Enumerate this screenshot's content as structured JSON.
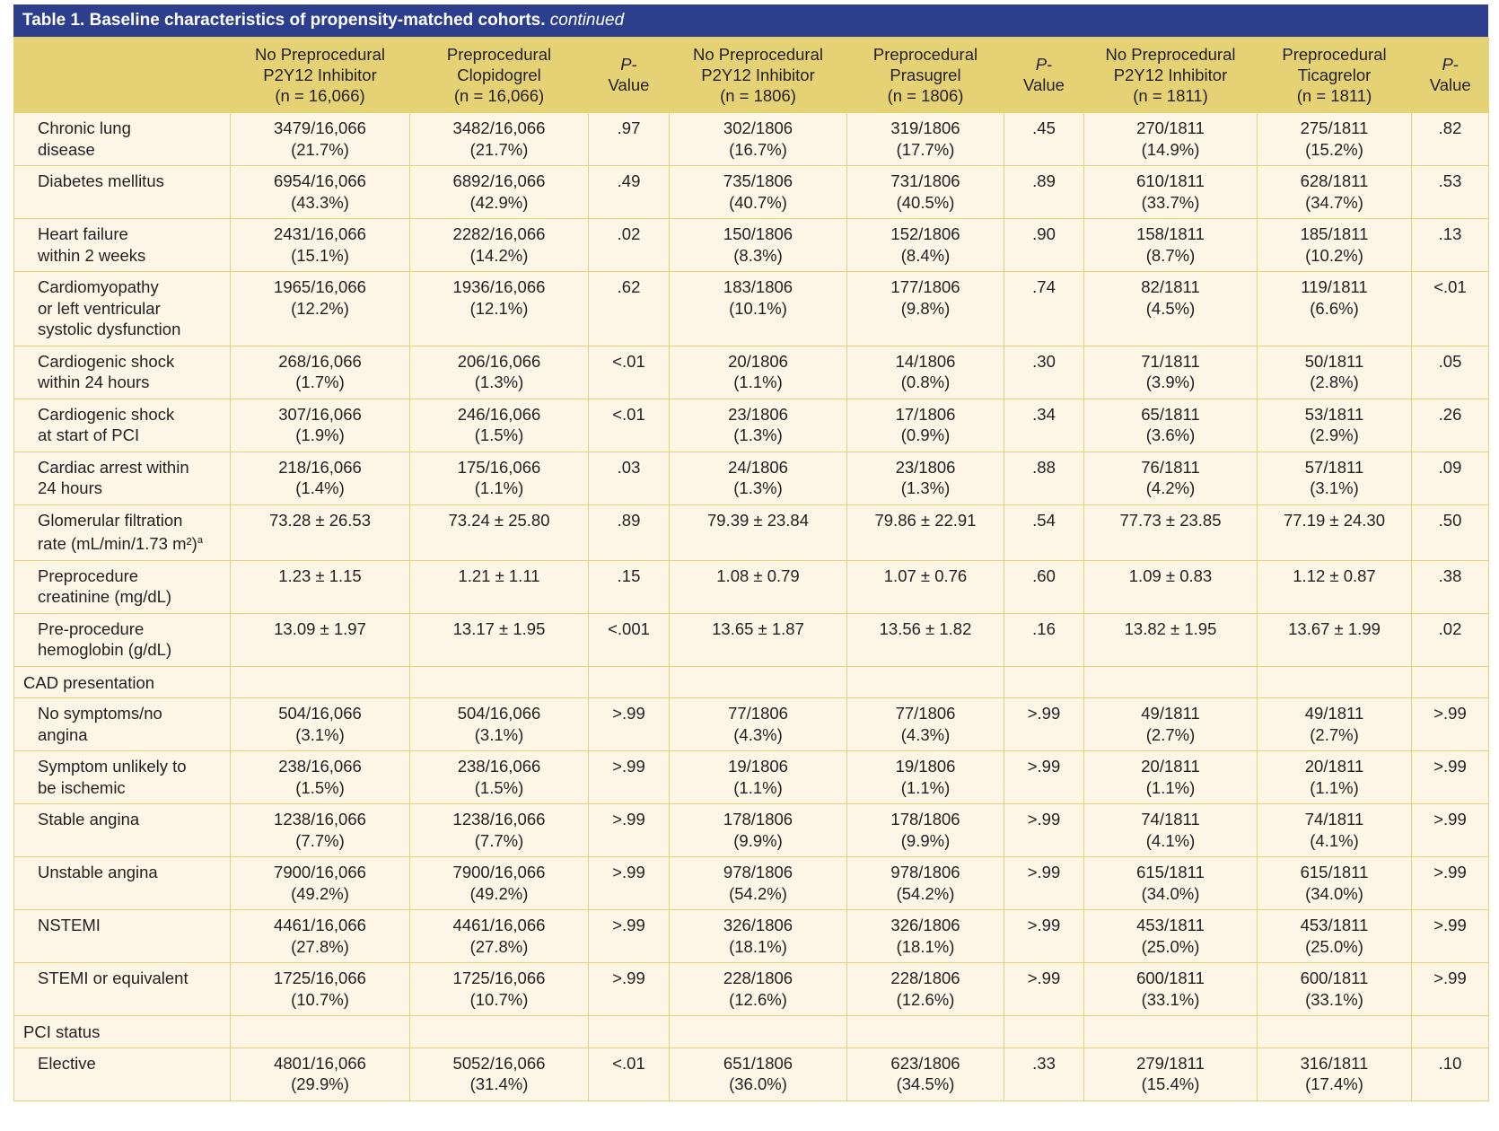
{
  "title": {
    "main": "Table 1. Baseline characteristics of propensity-matched cohorts.",
    "suffix": "continued"
  },
  "colors": {
    "title_bg": "#2c3e8c",
    "header_bg": "#e5d274",
    "body_bg": "#fdf6e6"
  },
  "columns": [
    "",
    "No Preprocedural\nP2Y12 Inhibitor\n(n = 16,066)",
    "Preprocedural\nClopidogrel\n(n = 16,066)",
    "P-\nValue",
    "No Preprocedural\nP2Y12 Inhibitor\n(n = 1806)",
    "Preprocedural\nPrasugrel\n(n = 1806)",
    "P-\nValue",
    "No Preprocedural\nP2Y12 Inhibitor\n(n = 1811)",
    "Preprocedural\nTicagrelor\n(n = 1811)",
    "P-\nValue"
  ],
  "rows": [
    {
      "label": "Chronic lung\ndisease",
      "cells": [
        "3479/16,066\n(21.7%)",
        "3482/16,066\n(21.7%)",
        ".97",
        "302/1806\n(16.7%)",
        "319/1806\n(17.7%)",
        ".45",
        "270/1811\n(14.9%)",
        "275/1811\n(15.2%)",
        ".82"
      ]
    },
    {
      "label": "Diabetes mellitus",
      "cells": [
        "6954/16,066\n(43.3%)",
        "6892/16,066\n(42.9%)",
        ".49",
        "735/1806\n(40.7%)",
        "731/1806\n(40.5%)",
        ".89",
        "610/1811\n(33.7%)",
        "628/1811\n(34.7%)",
        ".53"
      ]
    },
    {
      "label": "Heart failure\nwithin 2 weeks",
      "cells": [
        "2431/16,066\n(15.1%)",
        "2282/16,066\n(14.2%)",
        ".02",
        "150/1806\n(8.3%)",
        "152/1806\n(8.4%)",
        ".90",
        "158/1811\n(8.7%)",
        "185/1811\n(10.2%)",
        ".13"
      ]
    },
    {
      "label": "Cardiomyopathy\nor left ventricular\nsystolic dysfunction",
      "cells": [
        "1965/16,066\n(12.2%)",
        "1936/16,066\n(12.1%)",
        ".62",
        "183/1806\n(10.1%)",
        "177/1806\n(9.8%)",
        ".74",
        "82/1811\n(4.5%)",
        "119/1811\n(6.6%)",
        "<.01"
      ]
    },
    {
      "label": "Cardiogenic shock\nwithin 24 hours",
      "cells": [
        "268/16,066\n(1.7%)",
        "206/16,066\n(1.3%)",
        "<.01",
        "20/1806\n(1.1%)",
        "14/1806\n(0.8%)",
        ".30",
        "71/1811\n(3.9%)",
        "50/1811\n(2.8%)",
        ".05"
      ]
    },
    {
      "label": "Cardiogenic shock\nat start of PCI",
      "cells": [
        "307/16,066\n(1.9%)",
        "246/16,066\n(1.5%)",
        "<.01",
        "23/1806\n(1.3%)",
        "17/1806\n(0.9%)",
        ".34",
        "65/1811\n(3.6%)",
        "53/1811\n(2.9%)",
        ".26"
      ]
    },
    {
      "label": "Cardiac arrest within\n24 hours",
      "cells": [
        "218/16,066\n(1.4%)",
        "175/16,066\n(1.1%)",
        ".03",
        "24/1806\n(1.3%)",
        "23/1806\n(1.3%)",
        ".88",
        "76/1811\n(4.2%)",
        "57/1811\n(3.1%)",
        ".09"
      ]
    },
    {
      "label": "Glomerular filtration\nrate (mL/min/1.73 m²)",
      "sup": "a",
      "cells": [
        "73.28 ± 26.53",
        "73.24 ± 25.80",
        ".89",
        "79.39 ± 23.84",
        "79.86 ± 22.91",
        ".54",
        "77.73 ± 23.85",
        "77.19 ± 24.30",
        ".50"
      ]
    },
    {
      "label": "Preprocedure\ncreatinine (mg/dL)",
      "cells": [
        "1.23 ± 1.15",
        "1.21 ± 1.11",
        ".15",
        "1.08 ± 0.79",
        "1.07 ± 0.76",
        ".60",
        "1.09 ± 0.83",
        "1.12 ± 0.87",
        ".38"
      ]
    },
    {
      "label": "Pre-procedure\nhemoglobin (g/dL)",
      "cells": [
        "13.09 ± 1.97",
        "13.17 ± 1.95",
        "<.001",
        "13.65 ± 1.87",
        "13.56 ± 1.82",
        ".16",
        "13.82 ± 1.95",
        "13.67 ± 1.99",
        ".02"
      ]
    },
    {
      "section": "CAD presentation"
    },
    {
      "label": "No symptoms/no\nangina",
      "cells": [
        "504/16,066\n(3.1%)",
        "504/16,066\n(3.1%)",
        ">.99",
        "77/1806\n(4.3%)",
        "77/1806\n(4.3%)",
        ">.99",
        "49/1811\n(2.7%)",
        "49/1811\n(2.7%)",
        ">.99"
      ]
    },
    {
      "label": "Symptom unlikely to\nbe ischemic",
      "cells": [
        "238/16,066\n(1.5%)",
        "238/16,066\n(1.5%)",
        ">.99",
        "19/1806\n(1.1%)",
        "19/1806\n(1.1%)",
        ">.99",
        "20/1811\n(1.1%)",
        "20/1811\n(1.1%)",
        ">.99"
      ]
    },
    {
      "label": "Stable angina",
      "cells": [
        "1238/16,066\n(7.7%)",
        "1238/16,066\n(7.7%)",
        ">.99",
        "178/1806\n(9.9%)",
        "178/1806\n(9.9%)",
        ">.99",
        "74/1811\n(4.1%)",
        "74/1811\n(4.1%)",
        ">.99"
      ]
    },
    {
      "label": "Unstable angina",
      "cells": [
        "7900/16,066\n(49.2%)",
        "7900/16,066\n(49.2%)",
        ">.99",
        "978/1806\n(54.2%)",
        "978/1806\n(54.2%)",
        ">.99",
        "615/1811\n(34.0%)",
        "615/1811\n(34.0%)",
        ">.99"
      ]
    },
    {
      "label": "NSTEMI",
      "cells": [
        "4461/16,066\n(27.8%)",
        "4461/16,066\n(27.8%)",
        ">.99",
        "326/1806\n(18.1%)",
        "326/1806\n(18.1%)",
        ">.99",
        "453/1811\n(25.0%)",
        "453/1811\n(25.0%)",
        ">.99"
      ]
    },
    {
      "label": "STEMI or equivalent",
      "cells": [
        "1725/16,066\n(10.7%)",
        "1725/16,066\n(10.7%)",
        ">.99",
        "228/1806\n(12.6%)",
        "228/1806\n(12.6%)",
        ">.99",
        "600/1811\n(33.1%)",
        "600/1811\n(33.1%)",
        ">.99"
      ]
    },
    {
      "section": "PCI status"
    },
    {
      "label": "Elective",
      "cells": [
        "4801/16,066\n(29.9%)",
        "5052/16,066\n(31.4%)",
        "<.01",
        "651/1806\n(36.0%)",
        "623/1806\n(34.5%)",
        ".33",
        "279/1811\n(15.4%)",
        "316/1811\n(17.4%)",
        ".10"
      ]
    }
  ]
}
